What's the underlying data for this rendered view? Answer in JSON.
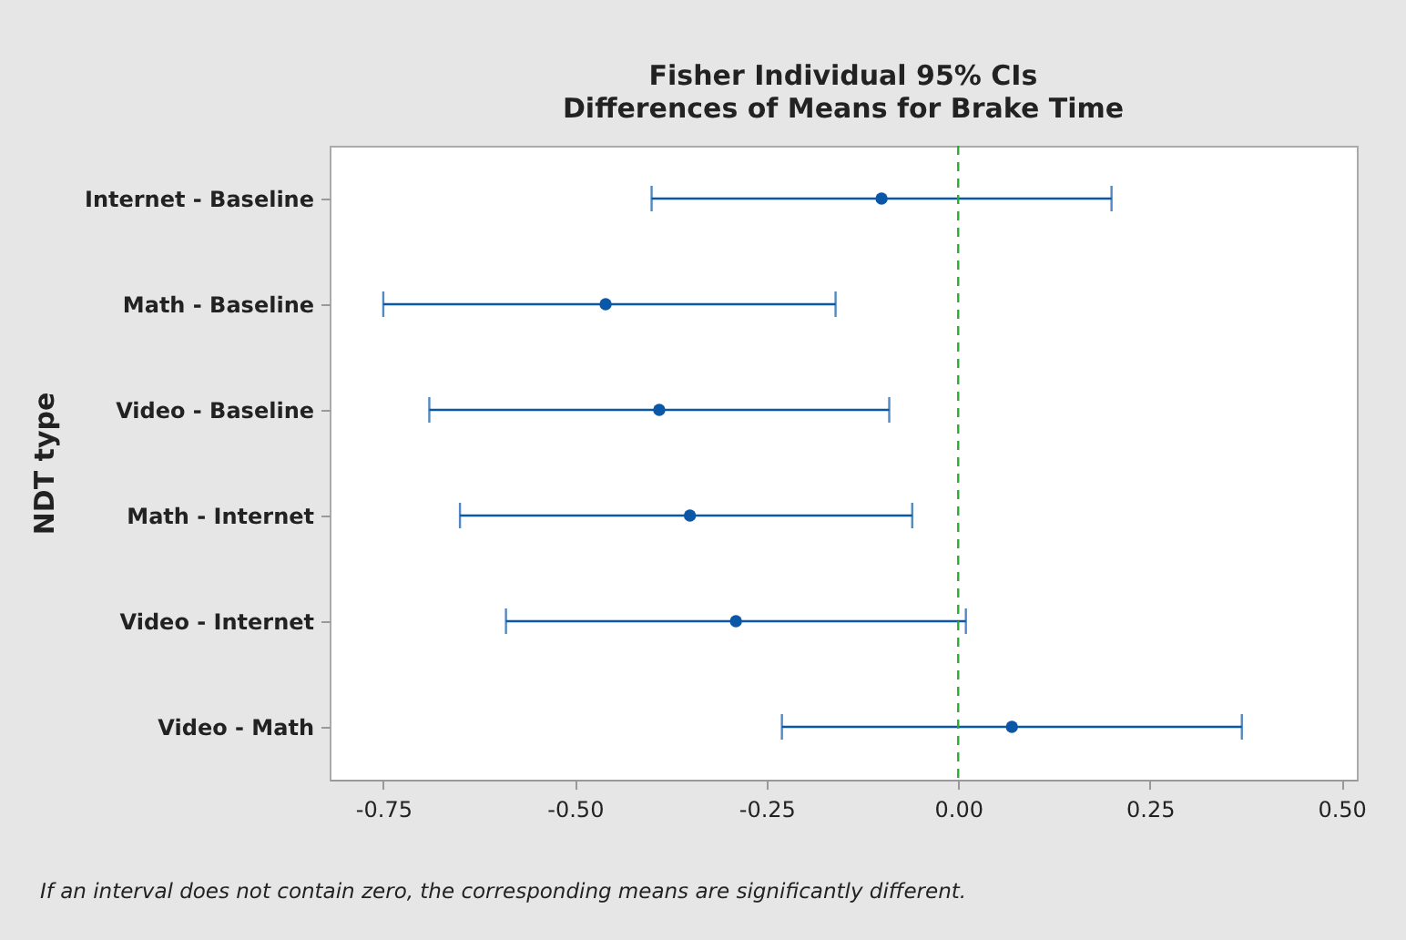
{
  "chart_data": {
    "type": "scatter",
    "orientation": "horizontal",
    "title": "Fisher Individual 95% CIs",
    "subtitle": "Differences of Means for Brake Time",
    "ylabel": "NDT type",
    "categories": [
      "Internet - Baseline",
      "Math - Baseline",
      "Video - Baseline",
      "Math - Internet",
      "Video - Internet",
      "Video - Math"
    ],
    "series": [
      {
        "color": "#0a57a8",
        "values": [
          -0.1,
          -0.46,
          -0.39,
          -0.35,
          -0.29,
          0.07
        ],
        "errors": [
          [
            -0.4,
            0.2
          ],
          [
            -0.75,
            -0.16
          ],
          [
            -0.69,
            -0.09
          ],
          [
            -0.65,
            -0.06
          ],
          [
            -0.59,
            0.01
          ],
          [
            -0.23,
            0.37
          ]
        ]
      }
    ],
    "xlim": [
      -0.82,
      0.52
    ],
    "xticks": [
      {
        "value": -0.75,
        "label": "-0.75"
      },
      {
        "value": -0.5,
        "label": "-0.50"
      },
      {
        "value": -0.25,
        "label": "-0.25"
      },
      {
        "value": 0,
        "label": "0.00"
      },
      {
        "value": 0.25,
        "label": "0.25"
      },
      {
        "value": 0.5,
        "label": "0.50"
      }
    ],
    "ref_lines": [
      {
        "axis": "x",
        "value": 0,
        "color": "#2ea836",
        "line_style": "dashed"
      }
    ],
    "marker": "circle",
    "grid": false,
    "annotations": [
      "If an interval does not contain zero, the corresponding means are significantly different."
    ]
  }
}
